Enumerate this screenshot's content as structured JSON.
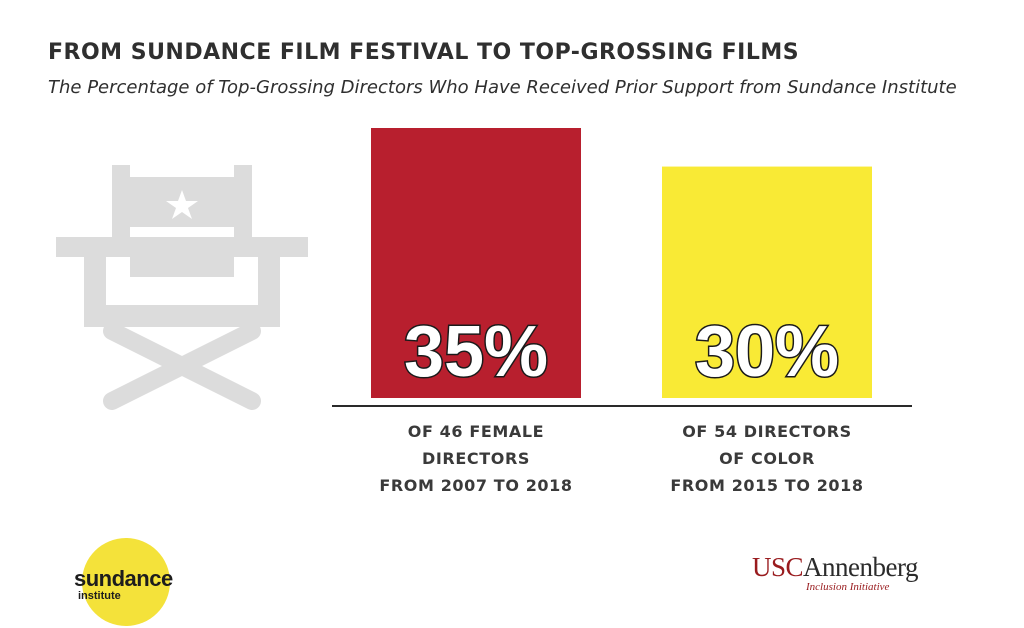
{
  "title": "FROM SUNDANCE FILM FESTIVAL TO TOP-GROSSING FILMS",
  "subtitle": "The Percentage of Top-Grossing Directors Who Have Received Prior Support from Sundance Institute",
  "chart_data": {
    "type": "bar",
    "title": "FROM SUNDANCE FILM FESTIVAL TO TOP-GROSSING FILMS",
    "subtitle": "The Percentage of Top-Grossing Directors Who Have Received Prior Support from Sundance Institute",
    "categories": [
      "OF 46 FEMALE DIRECTORS FROM 2007 TO 2018",
      "OF 54 DIRECTORS OF COLOR FROM 2015 TO 2018"
    ],
    "values": [
      35,
      30
    ],
    "value_labels": [
      "35%",
      "30%"
    ],
    "caption_lines": [
      [
        "OF 46 FEMALE",
        "DIRECTORS",
        "FROM 2007 TO 2018"
      ],
      [
        "OF 54 DIRECTORS",
        "OF COLOR",
        "FROM 2015 TO 2018"
      ]
    ],
    "colors": [
      "#b81f2e",
      "#f9ea35"
    ],
    "ylim": [
      0,
      35
    ],
    "grid": false,
    "xlabel": "",
    "ylabel": ""
  },
  "logos": {
    "sundance_word": "sundance",
    "sundance_sub": "institute",
    "usc_prefix": "USC",
    "usc_name": "Annenberg",
    "usc_sub": "Inclusion Initiative"
  },
  "icons": {
    "chair": "directors-chair-icon",
    "star": "star-icon"
  },
  "colors": {
    "title": "#2f2f2f",
    "chair": "#dcdcdc",
    "baseline": "#2a2a2a",
    "sun": "#f4e23a",
    "usc_red": "#991b1e"
  }
}
